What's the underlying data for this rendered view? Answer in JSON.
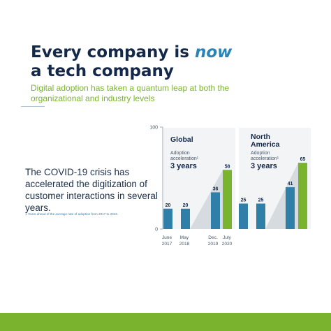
{
  "title": {
    "line1": "Every company is ",
    "emphasis": "now",
    "line2": "a tech company"
  },
  "subtitle": "Digital adoption has taken a quantum leap at both the organizational and industry levels",
  "body": {
    "text": "The COVID-19 crisis has accelerated the digitization of customer interactions in several years.",
    "footnote": "1 Years ahead of the average rate of adoption from 2017 to 2019."
  },
  "chart_data": {
    "type": "bar",
    "ylim": [
      0,
      100
    ],
    "yticks": [
      0,
      100
    ],
    "categories": [
      "June 2017",
      "May 2018",
      "Dec. 2019",
      "July 2020"
    ],
    "panels": [
      {
        "name": "Global",
        "annotation_label": "Adoption acceleration¹",
        "annotation_value": "3 years",
        "values": [
          20,
          20,
          36,
          58
        ]
      },
      {
        "name": "North America",
        "annotation_label": "Adoption acceleration¹",
        "annotation_value": "3 years",
        "values": [
          25,
          25,
          41,
          65
        ]
      }
    ],
    "colors": {
      "bar": "#2f7fa8",
      "highlight": "#7ab32e",
      "trend": "#d6dbe0"
    }
  }
}
